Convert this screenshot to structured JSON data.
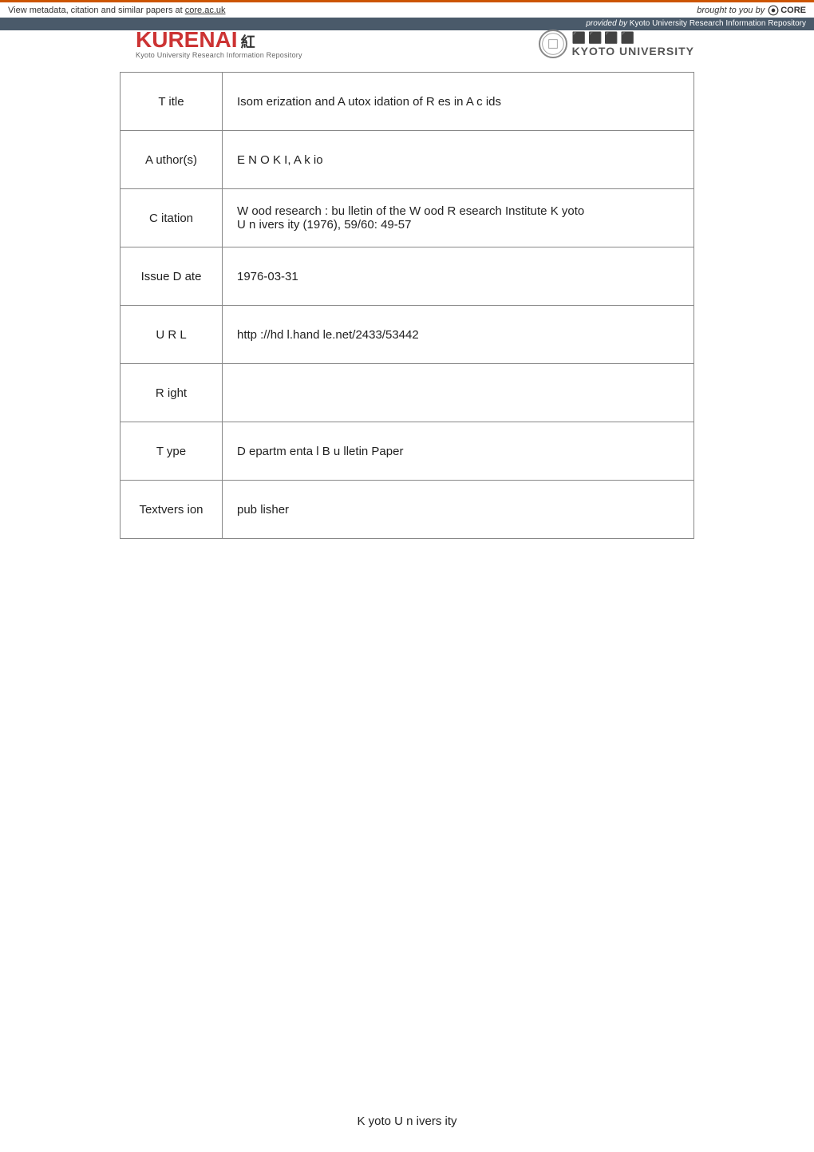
{
  "topbar": {
    "left_prefix": "View metadata, citation and similar papers at ",
    "left_link": "core.ac.uk",
    "right_prefix": "brought to you by",
    "core_label": "CORE"
  },
  "providerbar": {
    "prefix": "provided by ",
    "provider": "Kyoto University Research Information Repository"
  },
  "header": {
    "kurenai": "KURENAI",
    "kurenai_kanji": "紅",
    "kurenai_sub": "Kyoto University Research Information Repository",
    "kyoto_kanji": "京都大学",
    "kyoto_en": "KYOTO UNIVERSITY"
  },
  "table": {
    "rows": [
      {
        "label": "T itle",
        "value": "Isom erization and A utox idation of R es in A c ids"
      },
      {
        "label": "A uthor(s)",
        "value": "E N O K I, A k io"
      },
      {
        "label": "C itation",
        "value": "W ood research : bu lletin of the W ood R esearch Institute K yoto\nU n ivers ity (1976), 59/60: 49-57"
      },
      {
        "label": "Issue D ate",
        "value": "1976-03-31"
      },
      {
        "label": "U R L",
        "value": "http ://hd l.hand le.net/2433/53442"
      },
      {
        "label": "R ight",
        "value": ""
      },
      {
        "label": "T ype",
        "value": "D epartm enta l B u lletin Paper"
      },
      {
        "label": "Textvers ion",
        "value": "pub lisher"
      }
    ]
  },
  "footer": "K yoto U n ivers ity"
}
